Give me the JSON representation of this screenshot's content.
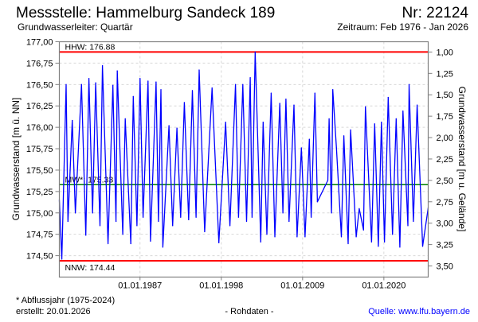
{
  "header": {
    "title": "Messstelle: Hammelburg Sandeck 189",
    "number": "Nr: 22124",
    "aquifer": "Grundwasserleiter: Quartär",
    "period": "Zeitraum: Feb 1976 - Jan 2026"
  },
  "footer": {
    "note": "* Abflussjahr (1975-2024)",
    "created": "erstellt:  20.01.2026",
    "datatype": "- Rohdaten -",
    "source": "Quelle: www.lfu.bayern.de"
  },
  "colors": {
    "series": "#0000ff",
    "extremes": "#ff0000",
    "mean": "#008000",
    "grid": "#d8d8d8",
    "source_link": "#0000ff"
  },
  "chart_data": {
    "type": "line",
    "ylabel": "Grundwasserstand [m ü. NN]",
    "y2label": "Grundwasserstand [m u. Gelände]",
    "xlim": [
      "1976-02",
      "2026-01"
    ],
    "ylim": [
      174.25,
      177.0
    ],
    "y2lim_note": "inverted",
    "grid": true,
    "x_ticks": [
      {
        "date": "1987-01",
        "label": "01.01.1987"
      },
      {
        "date": "1998-01",
        "label": "01.01.1998"
      },
      {
        "date": "2009-01",
        "label": "01.01.2009"
      },
      {
        "date": "2020-01",
        "label": "01.01.2020"
      }
    ],
    "y_ticks": [
      {
        "value": 177.0,
        "label": "177,00"
      },
      {
        "value": 176.75,
        "label": "176,75"
      },
      {
        "value": 176.5,
        "label": "176,50"
      },
      {
        "value": 176.25,
        "label": "176,25"
      },
      {
        "value": 176.0,
        "label": "176,00"
      },
      {
        "value": 175.75,
        "label": "175,75"
      },
      {
        "value": 175.5,
        "label": "175,50"
      },
      {
        "value": 175.25,
        "label": "175,25"
      },
      {
        "value": 175.0,
        "label": "175,00"
      },
      {
        "value": 174.75,
        "label": "174,75"
      },
      {
        "value": 174.5,
        "label": "174,50"
      }
    ],
    "y2_ticks": [
      {
        "value": 1.0,
        "label": "1,00"
      },
      {
        "value": 1.25,
        "label": "1,25"
      },
      {
        "value": 1.5,
        "label": "1,50"
      },
      {
        "value": 1.75,
        "label": "1,75"
      },
      {
        "value": 2.0,
        "label": "2,00"
      },
      {
        "value": 2.25,
        "label": "2,25"
      },
      {
        "value": 2.5,
        "label": "2,50"
      },
      {
        "value": 2.75,
        "label": "2,75"
      },
      {
        "value": 3.0,
        "label": "3,00"
      },
      {
        "value": 3.25,
        "label": "3,25"
      },
      {
        "value": 3.5,
        "label": "3,50"
      }
    ],
    "reference_lines": [
      {
        "key": "hhw",
        "value": 176.88,
        "label": "HHW: 176.88",
        "color": "#ff0000"
      },
      {
        "key": "mw",
        "value": 175.33,
        "label": "MW*: 175.33",
        "color": "#008000"
      },
      {
        "key": "nnw",
        "value": 174.44,
        "label": "NNW: 174.44",
        "color": "#ff0000"
      }
    ],
    "series": [
      {
        "color": "#0000ff",
        "points": [
          [
            "1976-02",
            175.15
          ],
          [
            "1976-06",
            174.46
          ],
          [
            "1977-01",
            176.5
          ],
          [
            "1977-04",
            174.9
          ],
          [
            "1977-11",
            176.08
          ],
          [
            "1978-04",
            175.0
          ],
          [
            "1979-02",
            176.5
          ],
          [
            "1979-09",
            174.74
          ],
          [
            "1980-02",
            176.57
          ],
          [
            "1980-08",
            175.0
          ],
          [
            "1981-01",
            176.52
          ],
          [
            "1981-08",
            174.85
          ],
          [
            "1981-12",
            176.72
          ],
          [
            "1982-09",
            174.64
          ],
          [
            "1983-05",
            176.49
          ],
          [
            "1983-10",
            174.9
          ],
          [
            "1983-12",
            176.66
          ],
          [
            "1984-09",
            174.75
          ],
          [
            "1985-01",
            176.1
          ],
          [
            "1985-10",
            174.64
          ],
          [
            "1986-02",
            176.36
          ],
          [
            "1986-08",
            174.85
          ],
          [
            "1987-01",
            176.57
          ],
          [
            "1987-06",
            174.95
          ],
          [
            "1988-02",
            176.54
          ],
          [
            "1988-06",
            174.67
          ],
          [
            "1989-03",
            176.53
          ],
          [
            "1989-07",
            174.9
          ],
          [
            "1989-11",
            176.44
          ],
          [
            "1990-02",
            174.6
          ],
          [
            "1990-12",
            176.02
          ],
          [
            "1991-06",
            174.85
          ],
          [
            "1992-01",
            175.99
          ],
          [
            "1992-07",
            174.95
          ],
          [
            "1993-01",
            176.29
          ],
          [
            "1993-08",
            174.92
          ],
          [
            "1994-02",
            176.43
          ],
          [
            "1994-08",
            174.95
          ],
          [
            "1995-01",
            176.67
          ],
          [
            "1995-10",
            174.78
          ],
          [
            "1996-10",
            176.46
          ],
          [
            "1997-09",
            174.65
          ],
          [
            "1998-08",
            176.06
          ],
          [
            "1999-03",
            174.85
          ],
          [
            "1999-12",
            176.5
          ],
          [
            "2000-05",
            174.95
          ],
          [
            "2000-12",
            176.5
          ],
          [
            "2001-06",
            174.9
          ],
          [
            "2001-12",
            176.58
          ],
          [
            "2002-03",
            174.95
          ],
          [
            "2002-08",
            176.88
          ],
          [
            "2003-05",
            174.66
          ],
          [
            "2003-09",
            176.06
          ],
          [
            "2004-03",
            174.75
          ],
          [
            "2004-10",
            176.4
          ],
          [
            "2005-04",
            174.72
          ],
          [
            "2005-12",
            176.28
          ],
          [
            "2006-05",
            175.0
          ],
          [
            "2006-10",
            176.33
          ],
          [
            "2007-03",
            174.9
          ],
          [
            "2007-11",
            176.26
          ],
          [
            "2008-04",
            174.72
          ],
          [
            "2008-11",
            175.76
          ],
          [
            "2009-05",
            174.72
          ],
          [
            "2009-12",
            175.86
          ],
          [
            "2010-03",
            174.95
          ],
          [
            "2010-09",
            176.4
          ],
          [
            "2011-01",
            175.13
          ],
          [
            "2012-06",
            175.38
          ],
          [
            "2012-08",
            176.1
          ],
          [
            "2012-12",
            175.0
          ],
          [
            "2013-02",
            176.44
          ],
          [
            "2013-08",
            175.76
          ],
          [
            "2014-04",
            174.72
          ],
          [
            "2014-08",
            175.9
          ],
          [
            "2015-03",
            174.64
          ],
          [
            "2015-07",
            175.97
          ],
          [
            "2016-04",
            174.72
          ],
          [
            "2016-09",
            175.05
          ],
          [
            "2017-04",
            174.8
          ],
          [
            "2017-07",
            176.24
          ],
          [
            "2018-05",
            174.66
          ],
          [
            "2018-10",
            176.04
          ],
          [
            "2019-04",
            174.61
          ],
          [
            "2019-09",
            176.06
          ],
          [
            "2020-02",
            174.66
          ],
          [
            "2020-08",
            176.35
          ],
          [
            "2021-03",
            174.75
          ],
          [
            "2021-09",
            176.1
          ],
          [
            "2022-03",
            174.6
          ],
          [
            "2022-08",
            176.19
          ],
          [
            "2023-04",
            174.85
          ],
          [
            "2023-06",
            176.5
          ],
          [
            "2024-01",
            174.9
          ],
          [
            "2024-07",
            176.26
          ],
          [
            "2025-04",
            174.61
          ],
          [
            "2026-01",
            175.06
          ]
        ]
      }
    ]
  }
}
